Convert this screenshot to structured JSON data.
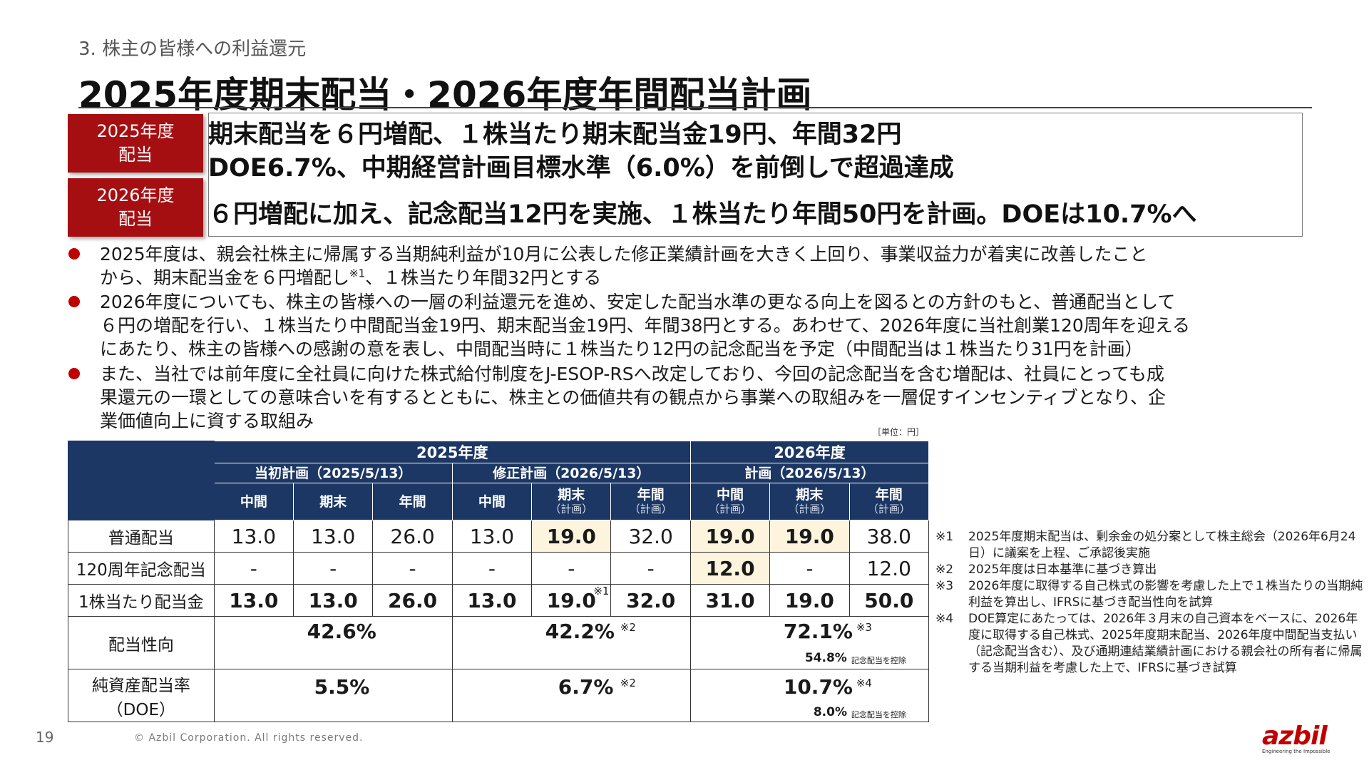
{
  "header": {
    "section": "3. 株主の皆様への利益還元",
    "title": "2025年度期末配当・2026年度年間配当計画"
  },
  "summary": {
    "tag_2025_line1": "2025年度",
    "tag_2025_line2": "配当",
    "tag_2026_line1": "2026年度",
    "tag_2026_line2": "配当",
    "headline_1": "期末配当を６円増配、１株当たり期末配当金19円、年間32円",
    "headline_2": "DOE6.7%、中期経営計画目標水準（6.0%）を前倒しで超過達成",
    "headline_3": "６円増配に加え、記念配当12円を実施、１株当たり年間50円を計画。DOEは10.7%へ"
  },
  "bullets": {
    "b1_line1": "2025年度は、親会社株主に帰属する当期純利益が10月に公表した修正業績計画を大きく上回り、事業収益力が着実に改善したこと",
    "b1_line2_pre": "から、期末配当金を６円増配し",
    "b1_line2_mark": "※1",
    "b1_line2_post": "、１株当たり年間32円とする",
    "b2_line1": "2026年度についても、株主の皆様への一層の利益還元を進め、安定した配当水準の更なる向上を図るとの方針のもと、普通配当として",
    "b2_line2": "６円の増配を行い、１株当たり中間配当金19円、期末配当金19円、年間38円とする。あわせて、2026年度に当社創業120周年を迎える",
    "b2_line3": "にあたり、株主の皆様への感謝の意を表し、中間配当時に１株当たり12円の記念配当を予定（中間配当は１株当たり31円を計画）",
    "b3_line1": "また、当社では前年度に全社員に向けた株式給付制度をJ-ESOP-RSへ改定しており、今回の記念配当を含む増配は、社員にとっても成",
    "b3_line2": "果還元の一環としての意味合いを有するとともに、株主との価値共有の観点から事業への取組みを一層促すインセンティブとなり、企",
    "b3_line3": "業価値向上に資する取組み"
  },
  "table": {
    "unit": "［単位：円］",
    "year_2025": "2025年度",
    "year_2026": "2026年度",
    "plan_initial": "当初計画（2025/5/13）",
    "plan_revised": "修正計画（2026/5/13）",
    "plan_2026": "計画（2026/5/13）",
    "col_interim": "中間",
    "col_final": "期末",
    "col_annual": "年間",
    "col_plan_paren": "（計画）",
    "rows": {
      "ordinary": {
        "label": "普通配当",
        "v": [
          "13.0",
          "13.0",
          "26.0",
          "13.0",
          "19.0",
          "32.0",
          "19.0",
          "19.0",
          "38.0"
        ]
      },
      "commemorative": {
        "label": "120周年記念配当",
        "v": [
          "-",
          "-",
          "-",
          "-",
          "-",
          "-",
          "12.0",
          "-",
          "12.0"
        ]
      },
      "per_share": {
        "label": "1株当たり配当金",
        "v": [
          "13.0",
          "13.0",
          "26.0",
          "13.0",
          "19.0",
          "32.0",
          "31.0",
          "19.0",
          "50.0"
        ],
        "mark": "※1"
      },
      "payout": {
        "label": "配当性向",
        "initial": "42.6%",
        "revised": "42.2%",
        "revised_mark": "※2",
        "plan": "72.1%",
        "plan_mark": "※3",
        "plan_excl": "54.8%",
        "plan_excl_note": "記念配当を控除"
      },
      "doe": {
        "label_line1": "純資産配当率",
        "label_line2": "（DOE）",
        "initial": "5.5%",
        "revised": "6.7%",
        "revised_mark": "※2",
        "plan": "10.7%",
        "plan_mark": "※4",
        "plan_excl": "8.0%",
        "plan_excl_note": "記念配当を控除"
      }
    }
  },
  "notes": [
    {
      "key": "※1",
      "text": "2025年度期末配当は、剰余金の処分案として株主総会（2026年6月24日）に議案を上程、ご承認後実施"
    },
    {
      "key": "※2",
      "text": "2025年度は日本基準に基づき算出"
    },
    {
      "key": "※3",
      "text": "2026年度に取得する自己株式の影響を考慮した上で１株当たりの当期純利益を算出し、IFRSに基づき配当性向を試算"
    },
    {
      "key": "※4",
      "text": "DOE算定にあたっては、2026年３月末の自己資本をベースに、2026年度に取得する自己株式、2025年度期末配当、2026年度中間配当支払い（記念配当含む）、及び通期連結業績計画における親会社の所有者に帰属する当期利益を考慮した上で、IFRSに基づき試算"
    }
  ],
  "footer": {
    "page": "19",
    "copyright": "© Azbil Corporation. All rights reserved.",
    "logo": "azbil",
    "logo_tagline": "Engineering the Impossible"
  },
  "colors": {
    "accent_red": "#a50f12",
    "table_header_navy": "#1c3764",
    "highlight_cell": "#fdf4de"
  }
}
